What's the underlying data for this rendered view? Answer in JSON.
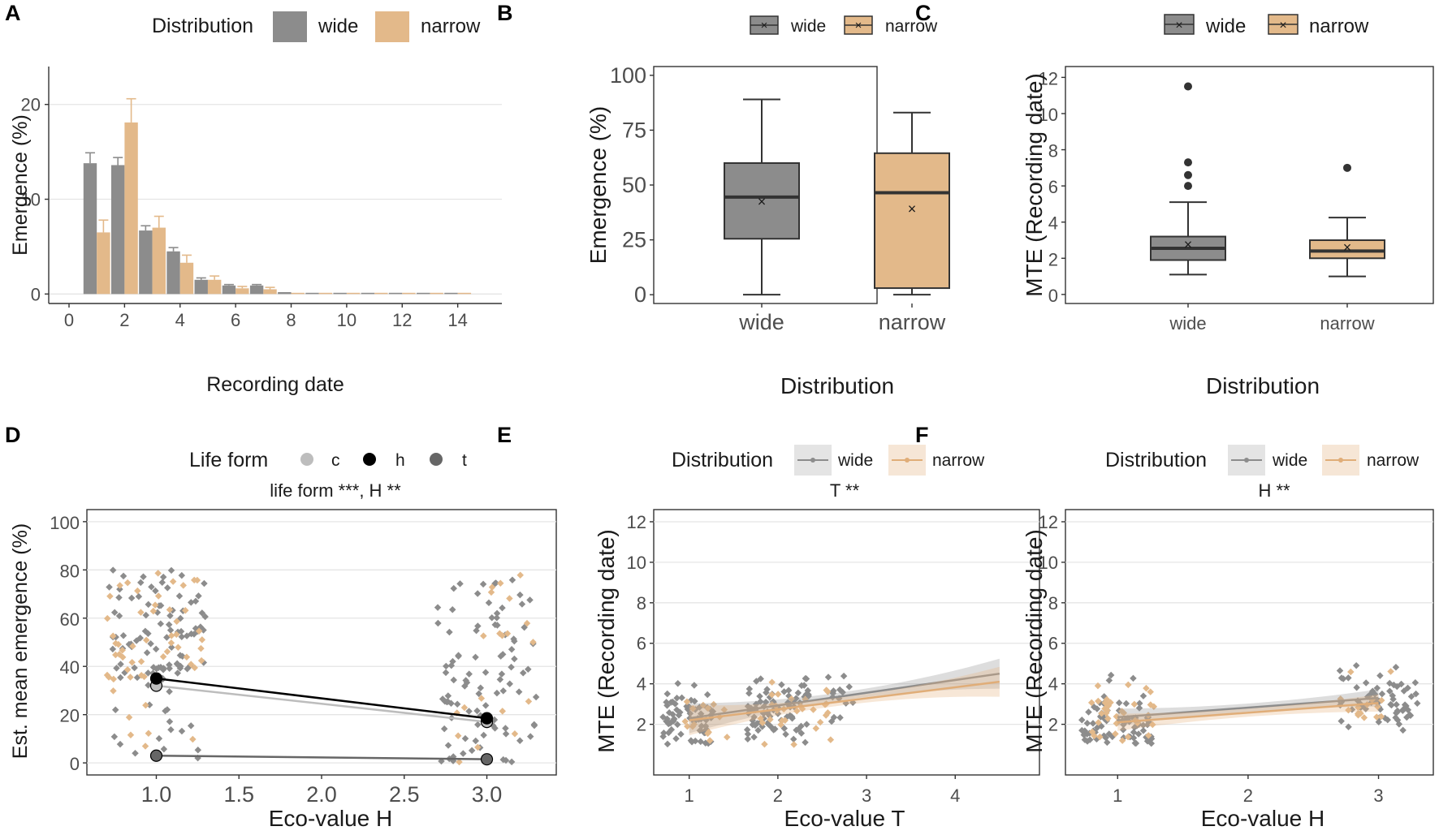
{
  "colors": {
    "wide": "#8c8c8c",
    "narrow": "#e3b98a",
    "wide_dark": "#7a7a7a",
    "narrow_line": "#e0ad78",
    "c": "#bdbdbd",
    "h": "#000000",
    "t": "#666666"
  },
  "panels": {
    "A": {
      "label": "A",
      "legend_title": "Distribution",
      "legend": [
        "wide",
        "narrow"
      ]
    },
    "B": {
      "label": "B",
      "legend": [
        "wide",
        "narrow"
      ]
    },
    "C": {
      "label": "C",
      "legend": [
        "wide",
        "narrow"
      ]
    },
    "D": {
      "label": "D",
      "legend_title": "Life form",
      "legend": [
        "c",
        "h",
        "t"
      ],
      "subtitle": "life form ***, H **"
    },
    "E": {
      "label": "E",
      "legend_title": "Distribution",
      "legend": [
        "wide",
        "narrow"
      ],
      "subtitle": "T **"
    },
    "F": {
      "label": "F",
      "legend_title": "Distribution",
      "legend": [
        "wide",
        "narrow"
      ],
      "subtitle": "H **"
    }
  },
  "chart_data": [
    {
      "id": "A",
      "type": "bar",
      "xlabel": "Recording date",
      "ylabel": "Emergence (%)",
      "xlim": [
        0,
        14.8
      ],
      "ylim": [
        -1,
        24
      ],
      "xticks": [
        "0",
        "2",
        "4",
        "6",
        "8",
        "10",
        "12",
        "14"
      ],
      "yticks": [
        "0",
        "10",
        "20"
      ],
      "categories": [
        1,
        2,
        3,
        4,
        5,
        6,
        7,
        8,
        9,
        10,
        11,
        12,
        13,
        14
      ],
      "series": [
        {
          "name": "wide",
          "values": [
            13.8,
            13.6,
            6.7,
            4.5,
            1.5,
            0.9,
            0.9,
            0.2,
            0.1,
            0.1,
            0.05,
            0.05,
            0.05,
            0.05
          ],
          "errors": [
            1.1,
            0.8,
            0.5,
            0.4,
            0.2,
            0.1,
            0.1,
            0.05,
            0.03,
            0.03,
            0.02,
            0.02,
            0.02,
            0.02
          ]
        },
        {
          "name": "narrow",
          "values": [
            6.5,
            18.1,
            7.0,
            3.3,
            1.5,
            0.6,
            0.5,
            0.1,
            0.1,
            0.05,
            0.05,
            0.05,
            0.05,
            0.05
          ],
          "errors": [
            1.3,
            2.5,
            1.2,
            0.8,
            0.4,
            0.2,
            0.2,
            0.05,
            0.03,
            0.03,
            0.02,
            0.02,
            0.02,
            0.02
          ]
        }
      ]
    },
    {
      "id": "B",
      "type": "box",
      "xlabel": "Distribution",
      "ylabel": "Emergence (%)",
      "ylim": [
        -4,
        104
      ],
      "yticks": [
        "0",
        "25",
        "50",
        "75",
        "100"
      ],
      "categories": [
        "wide",
        "narrow"
      ],
      "boxes": [
        {
          "name": "wide",
          "min": 0,
          "q1": 25.5,
          "median": 44.5,
          "q3": 60,
          "max": 89,
          "mean": 42.5,
          "outliers": []
        },
        {
          "name": "narrow",
          "min": 0,
          "q1": 3,
          "median": 46.5,
          "q3": 64.5,
          "max": 83,
          "mean": 39,
          "outliers": []
        }
      ]
    },
    {
      "id": "C",
      "type": "box",
      "xlabel": "Distribution",
      "ylabel": "MTE (Recording date)",
      "ylim": [
        -0.5,
        12.6
      ],
      "yticks": [
        "0",
        "2",
        "4",
        "6",
        "8",
        "10",
        "12"
      ],
      "categories": [
        "wide",
        "narrow"
      ],
      "boxes": [
        {
          "name": "wide",
          "min": 1.1,
          "q1": 1.9,
          "median": 2.55,
          "q3": 3.2,
          "max": 5.1,
          "mean": 2.75,
          "outliers": [
            6.0,
            6.6,
            7.3,
            11.5
          ]
        },
        {
          "name": "narrow",
          "min": 1.0,
          "q1": 2.0,
          "median": 2.4,
          "q3": 3.0,
          "max": 4.25,
          "mean": 2.6,
          "outliers": [
            7.0
          ]
        }
      ]
    },
    {
      "id": "D",
      "type": "scatter",
      "xlabel": "Eco-value H",
      "ylabel": "Est. mean emergence (%)",
      "xlim": [
        0.58,
        3.42
      ],
      "ylim": [
        -5,
        105
      ],
      "xticks": [
        "1.0",
        "1.5",
        "2.0",
        "2.5",
        "3.0"
      ],
      "yticks": [
        "0",
        "20",
        "40",
        "60",
        "80",
        "100"
      ],
      "lines": [
        {
          "name": "c",
          "x": [
            1.0,
            3.0
          ],
          "y": [
            32,
            17
          ]
        },
        {
          "name": "h",
          "x": [
            1.0,
            3.0
          ],
          "y": [
            35,
            18.5
          ]
        },
        {
          "name": "t",
          "x": [
            1.0,
            3.0
          ],
          "y": [
            3,
            1.5
          ]
        }
      ]
    },
    {
      "id": "E",
      "type": "scatter",
      "xlabel": "Eco-value T",
      "ylabel": "MTE (Recording date)",
      "xlim": [
        0.6,
        4.95
      ],
      "ylim": [
        -0.5,
        12.6
      ],
      "xticks": [
        "1",
        "2",
        "3",
        "4"
      ],
      "yticks": [
        "2",
        "4",
        "6",
        "8",
        "10",
        "12"
      ],
      "series": [
        {
          "name": "wide",
          "fit": {
            "x": [
              1.0,
              4.5
            ],
            "y": [
              2.3,
              4.5
            ]
          }
        },
        {
          "name": "narrow",
          "fit": {
            "x": [
              1.0,
              4.5
            ],
            "y": [
              2.2,
              4.1
            ]
          }
        }
      ]
    },
    {
      "id": "F",
      "type": "scatter",
      "xlabel": "Eco-value H",
      "ylabel": "MTE (Recording date)",
      "xlim": [
        0.6,
        3.42
      ],
      "ylim": [
        -0.5,
        12.6
      ],
      "xticks": [
        "1",
        "2",
        "3"
      ],
      "yticks": [
        "2",
        "4",
        "6",
        "8",
        "10",
        "12"
      ],
      "series": [
        {
          "name": "wide",
          "fit": {
            "x": [
              1.0,
              3.0
            ],
            "y": [
              2.35,
              3.3
            ]
          }
        },
        {
          "name": "narrow",
          "fit": {
            "x": [
              1.0,
              3.0
            ],
            "y": [
              2.1,
              3.05
            ]
          }
        }
      ]
    }
  ]
}
